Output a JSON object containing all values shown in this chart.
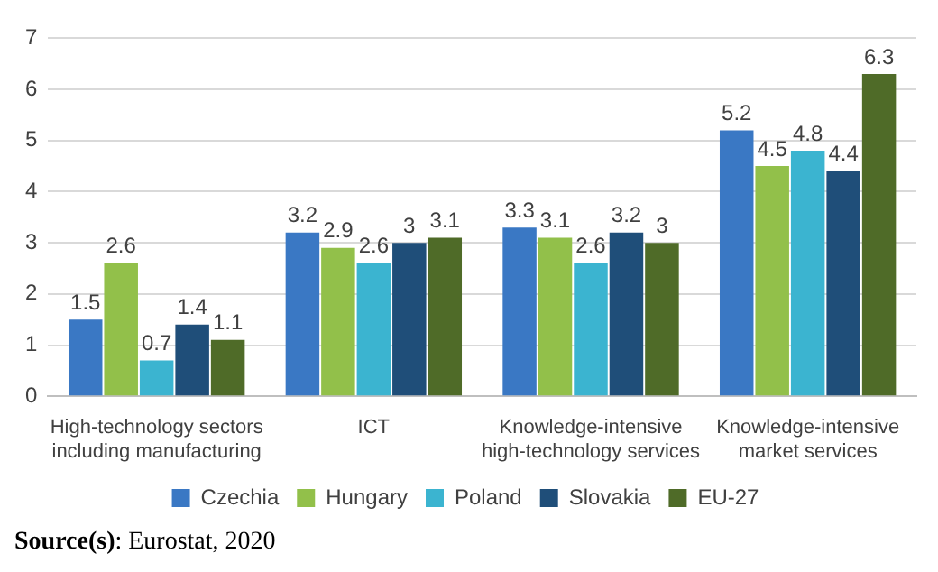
{
  "chart_data": {
    "type": "bar",
    "categories": [
      "High-technology sectors including manufacturing",
      "ICT",
      "Knowledge-intensive high-technology services",
      "Knowledge-intensive market services"
    ],
    "series": [
      {
        "name": "Czechia",
        "color": "#3a78c4",
        "values": [
          1.5,
          3.2,
          3.3,
          5.2
        ]
      },
      {
        "name": "Hungary",
        "color": "#92c04a",
        "values": [
          2.6,
          2.9,
          3.1,
          4.5
        ]
      },
      {
        "name": "Poland",
        "color": "#3bb4d0",
        "values": [
          0.7,
          2.6,
          2.6,
          4.8
        ]
      },
      {
        "name": "Slovakia",
        "color": "#1f4e79",
        "values": [
          1.4,
          3,
          3.2,
          4.4
        ]
      },
      {
        "name": "EU-27",
        "color": "#4f6b28",
        "values": [
          1.1,
          3.1,
          3,
          6.3
        ]
      }
    ],
    "ylim": [
      0,
      7
    ],
    "yticks": [
      0,
      1,
      2,
      3,
      4,
      5,
      6,
      7
    ],
    "grid": "y",
    "legend": "bottom",
    "data_labels": true,
    "annotations": [
      "Source(s): Eurostat, 2020"
    ]
  }
}
